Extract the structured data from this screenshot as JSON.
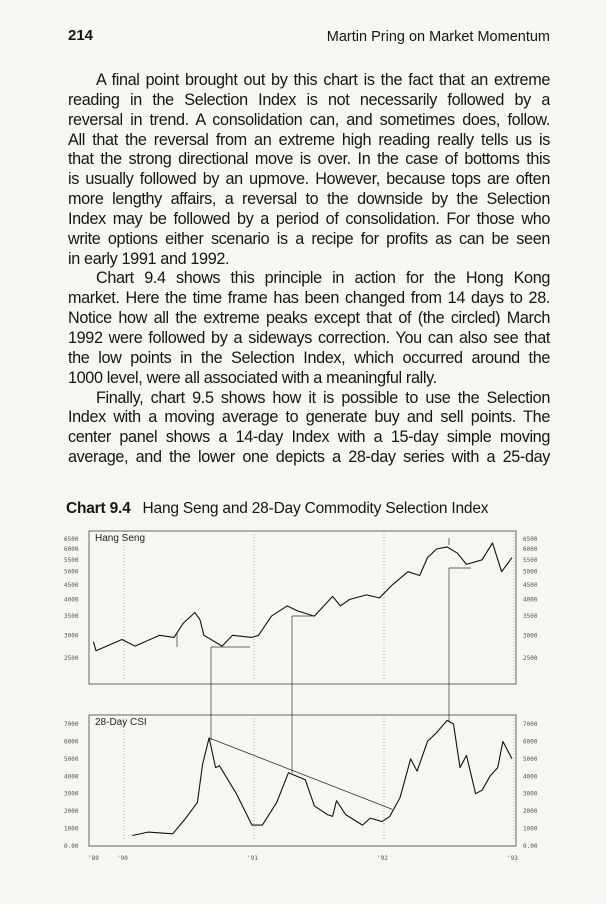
{
  "header": {
    "page_number": "214",
    "running_title": "Martin Pring on Market Momentum"
  },
  "body": {
    "paragraphs": [
      [
        "A final point brought out by this chart is the fact that an extreme",
        "reading in the Selection Index is not necessarily followed by a",
        "reversal in trend. A consolidation can, and sometimes does, follow.",
        "All that the reversal from an extreme high reading really tells us is",
        "that the strong directional move is over. In the case of bottoms this",
        "is usually followed by an upmove. However, because tops are often",
        "more lengthy affairs, a reversal to the downside by the Selection",
        "Index may be followed by a period of consolidation. For those who",
        "write options either scenario is a recipe for profits as can be seen",
        "in early 1991 and 1992."
      ],
      [
        "Chart 9.4 shows this principle in action for the Hong Kong",
        "market. Here the time frame has been changed from 14 days to 28.",
        "Notice how all the extreme peaks except that of (the circled) March",
        "1992 were followed by a sideways correction. You can also see that",
        "the low points in the Selection Index, which occurred around the",
        "1000 level, were all associated with a meaningful rally."
      ],
      [
        "Finally, chart 9.5 shows how it is possible to use the Selection",
        "Index with a moving average to generate buy and sell points. The",
        "center panel shows a 14-day Index with a 15-day simple moving",
        "average, and the lower one depicts a 28-day series with a 25-day"
      ]
    ]
  },
  "chart": {
    "label": "Chart 9.4",
    "title": "Hang Seng and 28-Day Commodity Selection Index"
  },
  "chart_data": {
    "type": "line",
    "x_ticks": [
      "'89",
      "'90",
      "'91",
      "'92",
      "'93"
    ],
    "panels": [
      {
        "name": "Hang Seng",
        "scale": "log",
        "y_ticks": [
          "6500",
          "6000",
          "5500",
          "5000",
          "4500",
          "4000",
          "3500",
          "3000",
          "2500"
        ],
        "ylim": [
          2500,
          6500
        ],
        "x": [
          1989.78,
          1989.8,
          1990.0,
          1990.1,
          1990.29,
          1990.4,
          1990.47,
          1990.56,
          1990.6,
          1990.63,
          1990.77,
          1990.85,
          1991.0,
          1991.05,
          1991.15,
          1991.27,
          1991.35,
          1991.48,
          1991.62,
          1991.68,
          1991.75,
          1991.88,
          1991.98,
          1992.08,
          1992.2,
          1992.29,
          1992.35,
          1992.42,
          1992.5,
          1992.58,
          1992.65,
          1992.77,
          1992.85,
          1992.92,
          1993.0
        ],
        "y": [
          2850,
          2650,
          2900,
          2750,
          3000,
          2950,
          3300,
          3600,
          3400,
          3000,
          2750,
          3000,
          2950,
          3000,
          3500,
          3800,
          3650,
          3500,
          4100,
          3800,
          4000,
          4150,
          4050,
          4500,
          5000,
          4850,
          5600,
          6000,
          6100,
          5800,
          5300,
          5500,
          6300,
          5000,
          5600
        ]
      },
      {
        "name": "28-Day CSI",
        "scale": "linear",
        "y_ticks": [
          "7000",
          "6000",
          "5000",
          "4000",
          "3000",
          "2000",
          "1000",
          "0.00"
        ],
        "ylim": [
          0,
          7000
        ],
        "x": [
          1990.08,
          1990.2,
          1990.39,
          1990.48,
          1990.58,
          1990.62,
          1990.67,
          1990.72,
          1990.75,
          1990.88,
          1991.0,
          1991.08,
          1991.19,
          1991.28,
          1991.41,
          1991.48,
          1991.58,
          1991.62,
          1991.65,
          1991.72,
          1991.85,
          1991.91,
          1992.0,
          1992.06,
          1992.14,
          1992.22,
          1992.27,
          1992.35,
          1992.42,
          1992.5,
          1992.55,
          1992.6,
          1992.65,
          1992.72,
          1992.77,
          1992.83,
          1992.89,
          1992.93,
          1993.0
        ],
        "y": [
          600,
          800,
          700,
          1500,
          2500,
          4700,
          6200,
          4500,
          4600,
          3000,
          1200,
          1200,
          2500,
          4200,
          3800,
          2300,
          1800,
          1700,
          2600,
          1800,
          1200,
          1600,
          1400,
          1700,
          2800,
          5000,
          4300,
          6000,
          6500,
          7200,
          7000,
          4500,
          5200,
          3000,
          3200,
          4000,
          4500,
          6000,
          5000
        ],
        "trendline": {
          "x": [
            1990.67,
            1992.08
          ],
          "y": [
            6200,
            2100
          ]
        }
      }
    ],
    "line_color": "#111111"
  }
}
